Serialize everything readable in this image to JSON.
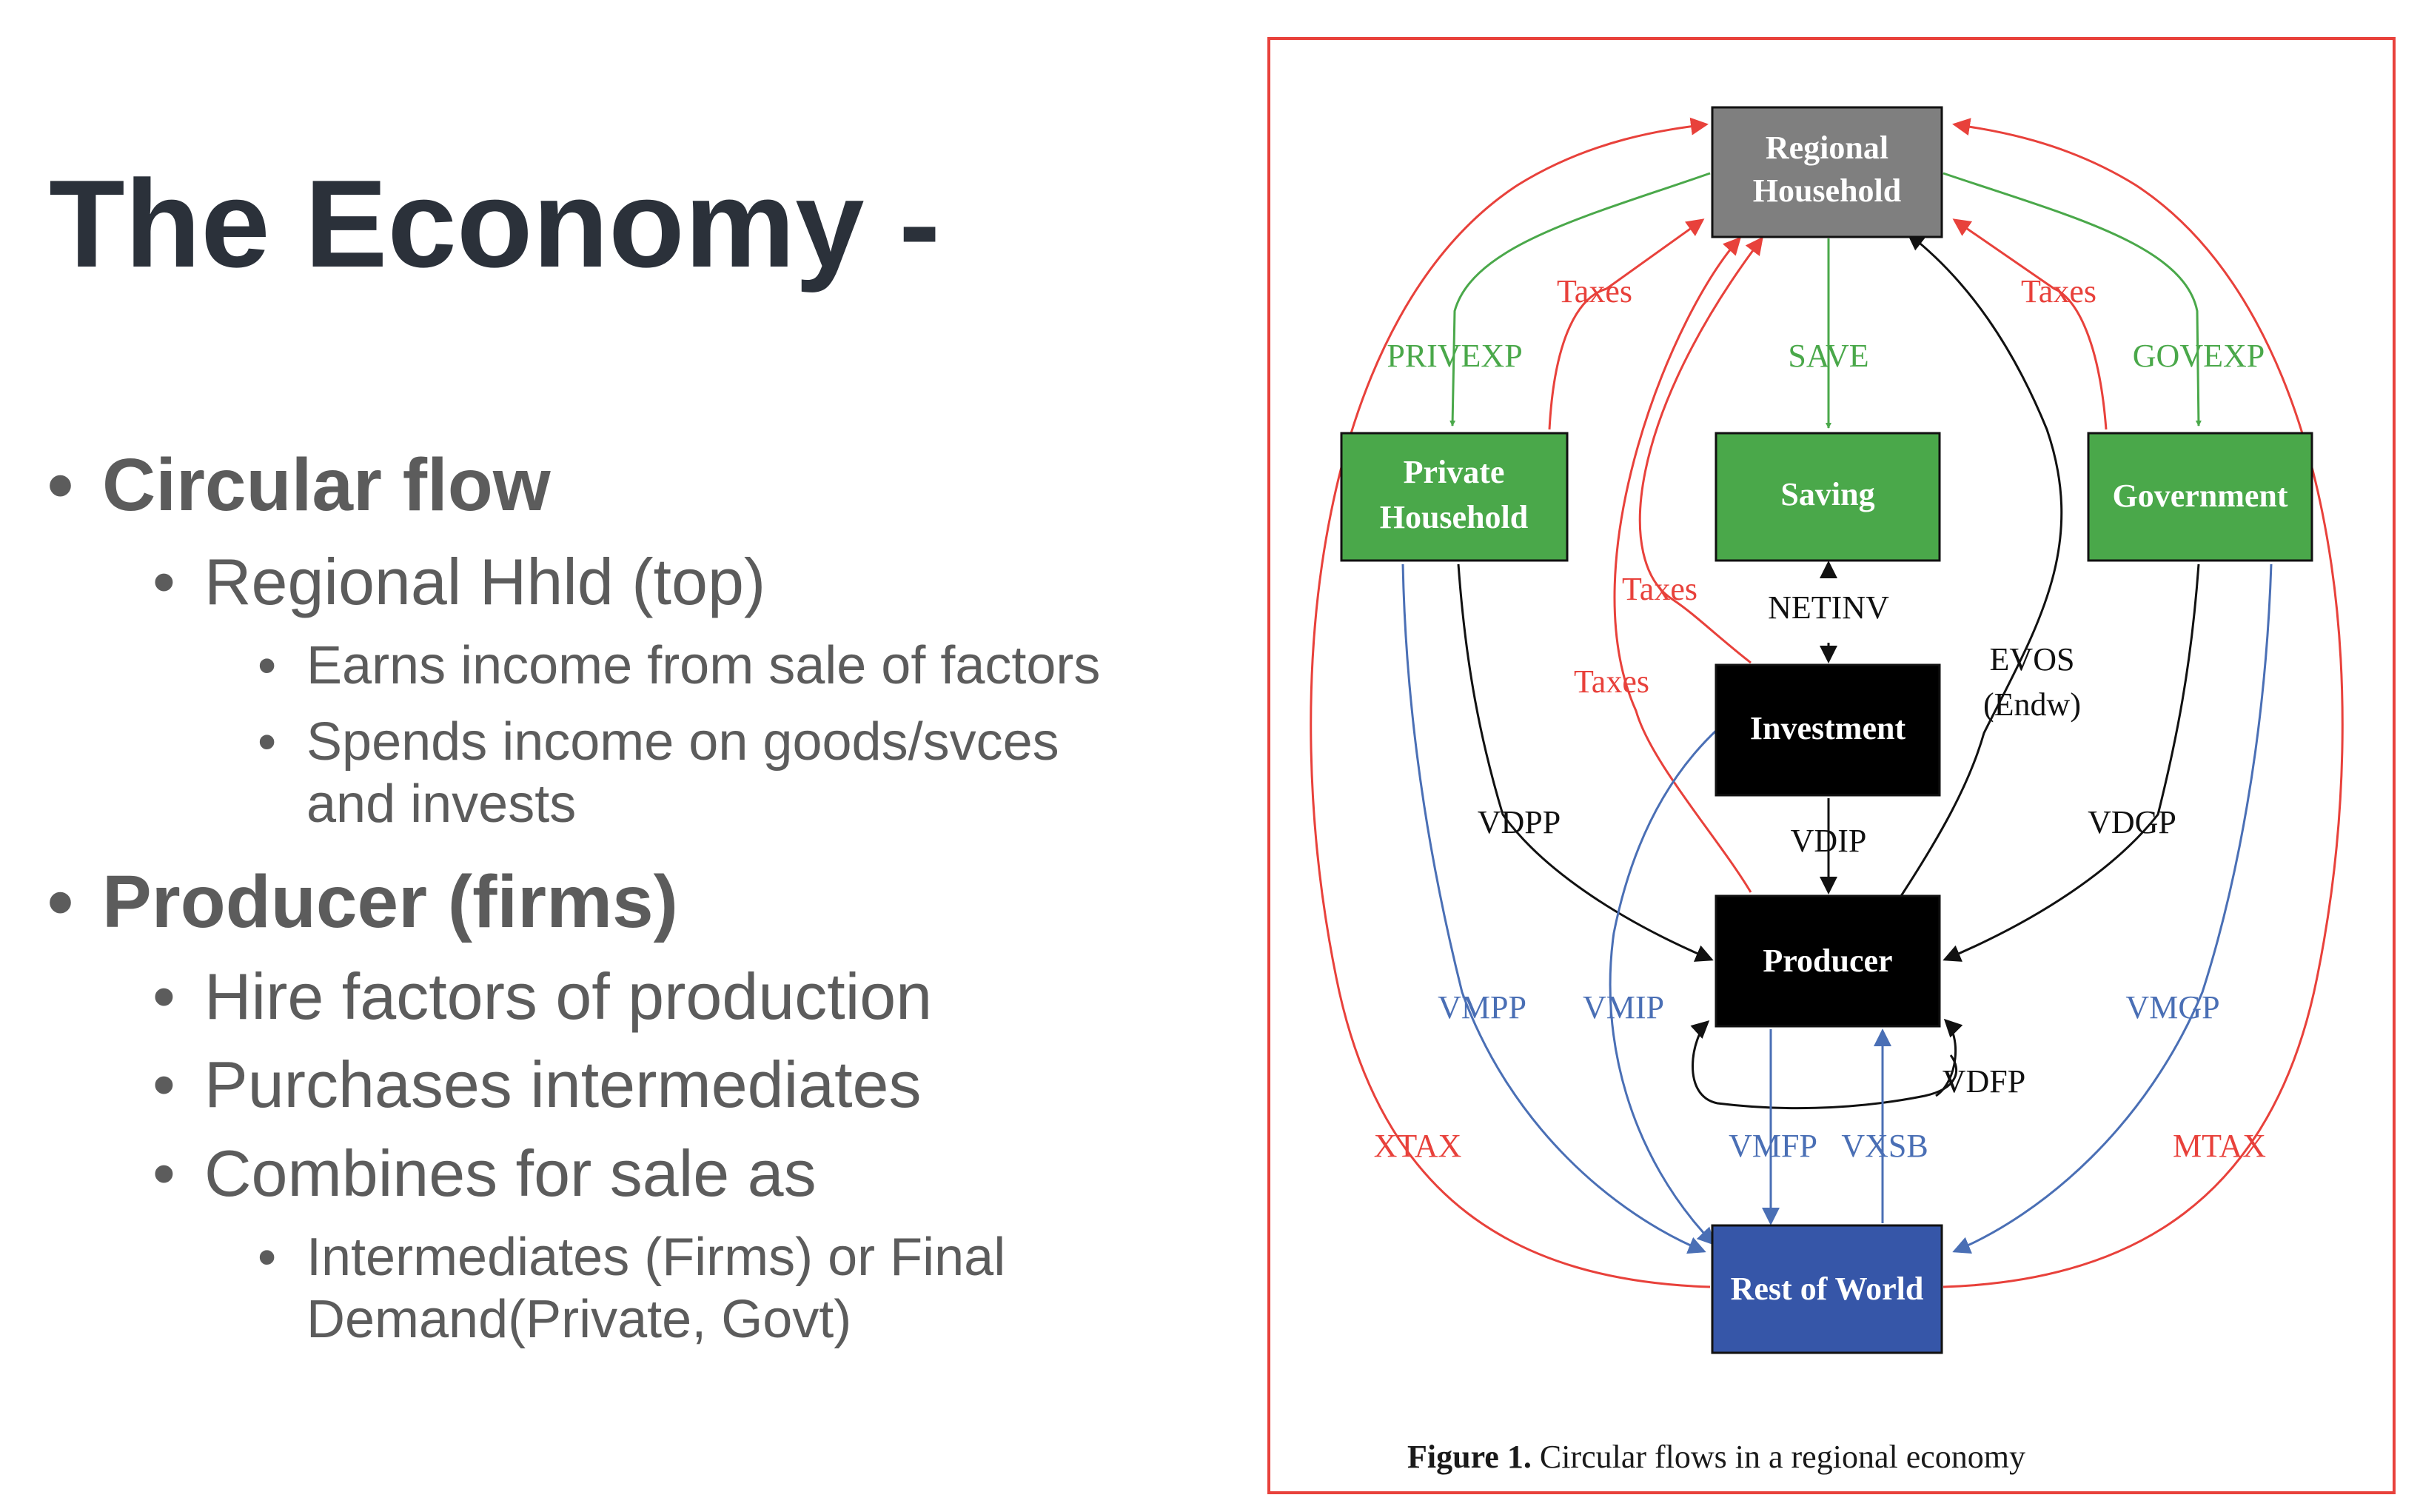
{
  "slide": {
    "title": "The Economy -",
    "bullets": {
      "circular_flow": "Circular flow",
      "regional_hhld": "Regional Hhld (top)",
      "earns_income": "Earns income from sale of factors",
      "spends_income_1": "Spends income on goods/svces",
      "spends_income_2": "and invests",
      "producer": "Producer (firms)",
      "hire_factors": "Hire factors of production",
      "purchases": "Purchases intermediates",
      "combines": "Combines for sale as",
      "intermediates_1": "Intermediates (Firms) or Final",
      "intermediates_2": "Demand(Private, Govt)"
    }
  },
  "figure": {
    "caption_label": "Figure 1.",
    "caption_text": " Circular flows in a regional economy",
    "nodes": {
      "regional_household": [
        "Regional",
        "Household"
      ],
      "private_household": [
        "Private",
        "Household"
      ],
      "saving": "Saving",
      "government": "Government",
      "investment": "Investment",
      "producer": "Producer",
      "rest_of_world": "Rest of World"
    },
    "flows": {
      "taxes": "Taxes",
      "privexp": "PRIVEXP",
      "save": "SAVE",
      "govexp": "GOVEXP",
      "netinv": "NETINV",
      "evos": "EVOS",
      "endw": "(Endw)",
      "vdpp": "VDPP",
      "vdip": "VDIP",
      "vdgp": "VDGP",
      "vmpp": "VMPP",
      "vmip": "VMIP",
      "vmgp": "VMGP",
      "vdfp": "VDFP",
      "xtax": "XTAX",
      "mtax": "MTAX",
      "vmfp": "VMFP",
      "vxsb": "VXSB"
    },
    "colors": {
      "green_flow": "#4aa84a",
      "red_flow": "#e8413b",
      "blue_flow": "#4a6fb5",
      "black_flow": "#111111",
      "regional_household_fill": "#7f7f7f",
      "green_node_fill": "#4aa84a",
      "black_node_fill": "#000000",
      "rest_of_world_fill": "#3656a8"
    }
  }
}
